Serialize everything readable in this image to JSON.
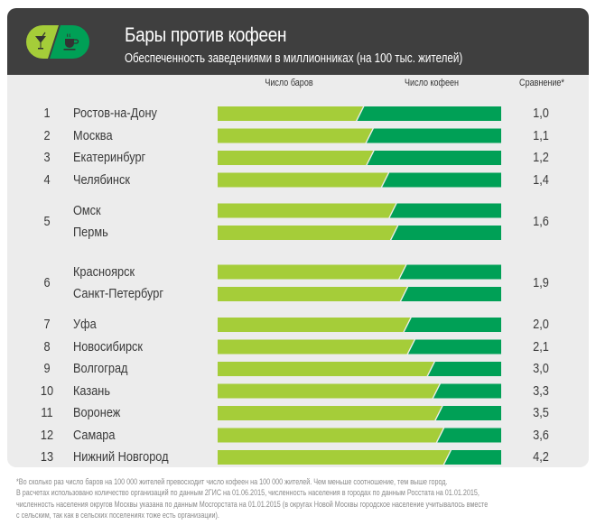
{
  "header": {
    "title": "Бары против кофеен",
    "subtitle": "Обеспеченность заведениями в миллионниках (на 100 тыс. жителей)",
    "icons": [
      "cocktail-glass-icon",
      "coffee-cup-icon"
    ]
  },
  "colors": {
    "header_bg": "#3f3f3f",
    "panel_bg": "#ececec",
    "bars_green": "#a5cd39",
    "cafes_green": "#00a056"
  },
  "chart_data": {
    "type": "bar",
    "stacked": "normalized",
    "title": "Бары против кофеен",
    "subtitle": "Обеспеченность заведениями в миллионниках (на 100 тыс. жителей)",
    "columns": {
      "bars": "Число баров",
      "cafes": "Число кофеен",
      "comparison": "Сравнение*"
    },
    "groups": [
      {
        "rank": "1",
        "comparison": "1,0",
        "cities": [
          {
            "name": "Ростов-на-Дону",
            "bars": 7,
            "cafes": 7
          }
        ]
      },
      {
        "rank": "2",
        "comparison": "1,1",
        "cities": [
          {
            "name": "Москва",
            "bars": 8,
            "cafes": 7
          }
        ]
      },
      {
        "rank": "3",
        "comparison": "1,2",
        "cities": [
          {
            "name": "Екатеринбург",
            "bars": 15,
            "cafes": 13
          }
        ]
      },
      {
        "rank": "4",
        "comparison": "1,4",
        "cities": [
          {
            "name": "Челябинск",
            "bars": 10,
            "cafes": 7
          }
        ]
      },
      {
        "rank": "5",
        "comparison": "1,6",
        "cities": [
          {
            "name": "Омск",
            "bars": 8,
            "cafes": 5
          },
          {
            "name": "Пермь",
            "bars": 18,
            "cafes": 11
          }
        ]
      },
      {
        "rank": "6",
        "comparison": "1,9",
        "cities": [
          {
            "name": "Красноярск",
            "bars": 13,
            "cafes": 7
          },
          {
            "name": "Санкт-Петербург",
            "bars": 19,
            "cafes": 10
          }
        ]
      },
      {
        "rank": "7",
        "comparison": "2,0",
        "cities": [
          {
            "name": "Уфа",
            "bars": 10,
            "cafes": 5
          }
        ]
      },
      {
        "rank": "8",
        "comparison": "2,1",
        "cities": [
          {
            "name": "Новосибирск",
            "bars": 17,
            "cafes": 8
          }
        ]
      },
      {
        "rank": "9",
        "comparison": "3,0",
        "cities": [
          {
            "name": "Волгоград",
            "bars": 9,
            "cafes": 3
          }
        ]
      },
      {
        "rank": "10",
        "comparison": "3,3",
        "cities": [
          {
            "name": "Казань",
            "bars": 20,
            "cafes": 6
          }
        ]
      },
      {
        "rank": "11",
        "comparison": "3,5",
        "cities": [
          {
            "name": "Воронеж",
            "bars": 7,
            "cafes": 2
          }
        ]
      },
      {
        "rank": "12",
        "comparison": "3,6",
        "cities": [
          {
            "name": "Самара",
            "bars": 18,
            "cafes": 5
          }
        ]
      },
      {
        "rank": "13",
        "comparison": "4,2",
        "cities": [
          {
            "name": "Нижний Новгород",
            "bars": 21,
            "cafes": 5
          }
        ]
      }
    ]
  },
  "footnote": [
    "*Во сколько раз число баров на 100 000 жителей превосходит число кофеен на 100 000 жителей. Чем меньше соотношение, тем выше город.",
    "В расчетах использовано количество организаций по данным 2ГИС на 01.06.2015, численность населения в городах по данным Росстата на 01.01.2015,",
    "численность населения округов Москвы указана по данным Мосгорстата на 01.01.2015 (в округах Новой Москвы городское население учитывалось вместе",
    "с сельским, так как в сельских поселениях тоже есть организации)."
  ]
}
